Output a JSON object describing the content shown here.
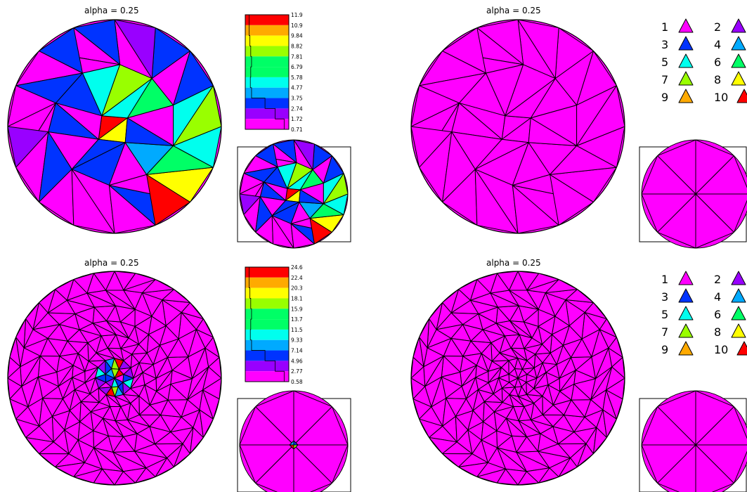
{
  "panels": [
    {
      "id": "top-left",
      "title": "alpha  =  0.25",
      "colorbar_labels": [
        "11.9",
        "10.9",
        "9.84",
        "8.82",
        "7.81",
        "6.79",
        "5.78",
        "4.77",
        "3.75",
        "2.74",
        "1.72",
        "0.71"
      ]
    },
    {
      "id": "top-right",
      "title": "alpha  =  0.25",
      "legend_labels": [
        "1",
        "2",
        "3",
        "4",
        "5",
        "6",
        "7",
        "8",
        "9",
        "10"
      ]
    },
    {
      "id": "bottom-left",
      "title": "alpha  =  0.25",
      "colorbar_labels": [
        "24.6",
        "22.4",
        "20.3",
        "18.1",
        "15.9",
        "13.7",
        "11.5",
        "9.33",
        "7.14",
        "4.96",
        "2.77",
        "0.58"
      ]
    },
    {
      "id": "bottom-right",
      "title": "alpha  =  0.25",
      "legend_labels": [
        "1",
        "2",
        "3",
        "4",
        "5",
        "6",
        "7",
        "8",
        "9",
        "10"
      ]
    }
  ],
  "level_colors": [
    "#ff00ff",
    "#9900ff",
    "#0033ff",
    "#00aaff",
    "#00ffee",
    "#00ff66",
    "#99ff00",
    "#ffff00",
    "#ffaa00",
    "#ff0000"
  ],
  "colors": {
    "mesh_background": "#ff00ff",
    "edge": "#000000",
    "inset_frame": "#000000"
  }
}
